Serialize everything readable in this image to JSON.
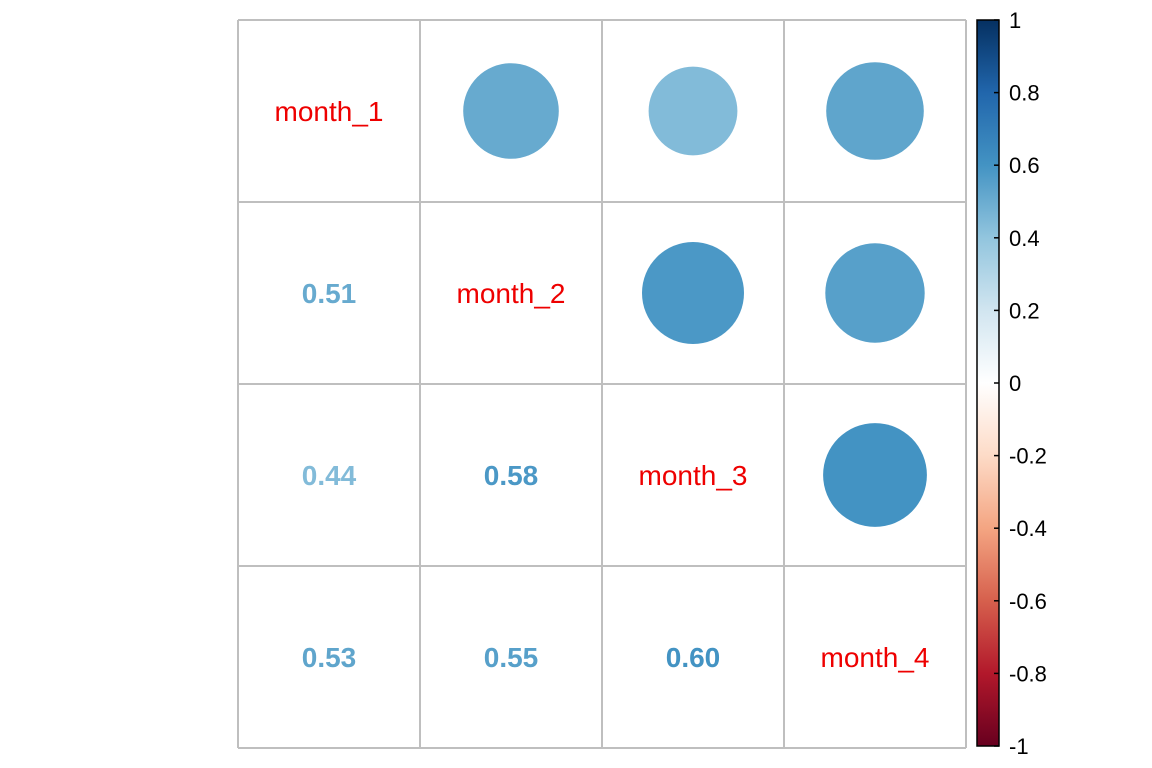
{
  "chart_data": {
    "type": "correlation-matrix",
    "variables": [
      "month_1",
      "month_2",
      "month_3",
      "month_4"
    ],
    "matrix": [
      [
        1.0,
        0.51,
        0.44,
        0.53
      ],
      [
        0.51,
        1.0,
        0.58,
        0.55
      ],
      [
        0.44,
        0.58,
        1.0,
        0.6
      ],
      [
        0.53,
        0.55,
        0.6,
        1.0
      ]
    ],
    "lower_labels": [
      {
        "row": 1,
        "col": 0,
        "text": "0.51"
      },
      {
        "row": 2,
        "col": 0,
        "text": "0.44"
      },
      {
        "row": 2,
        "col": 1,
        "text": "0.58"
      },
      {
        "row": 3,
        "col": 0,
        "text": "0.53"
      },
      {
        "row": 3,
        "col": 1,
        "text": "0.55"
      },
      {
        "row": 3,
        "col": 2,
        "text": "0.60"
      }
    ],
    "upper_method": "circle",
    "lower_method": "number",
    "diagonal": "variable-names",
    "colorbar": {
      "range": [
        -1,
        1
      ],
      "ticks": [
        "1",
        "0.8",
        "0.6",
        "0.4",
        "0.2",
        "0",
        "-0.2",
        "-0.4",
        "-0.6",
        "-0.8",
        "-1"
      ],
      "colors": [
        "#67001F",
        "#B2182B",
        "#D6604D",
        "#F4A582",
        "#FDDBC7",
        "#FFFFFF",
        "#D1E5F0",
        "#92C5DE",
        "#4393C3",
        "#2166AC",
        "#053061"
      ]
    },
    "label_color": "#ee0000",
    "grid_color": "#bfbfbf"
  }
}
